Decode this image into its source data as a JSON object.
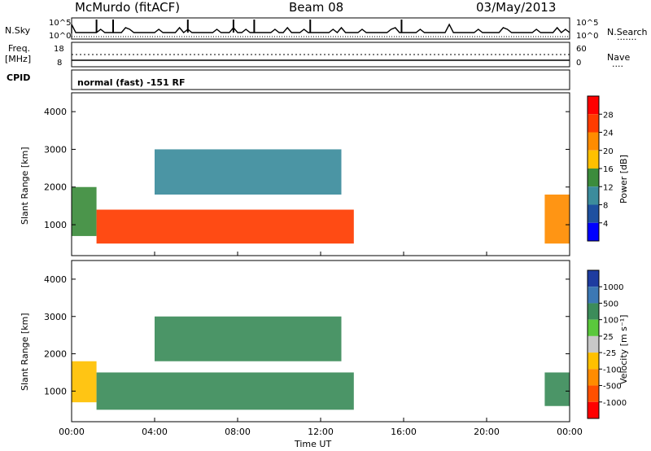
{
  "header": {
    "station": "McMurdo (fitACF)",
    "beam": "Beam 08",
    "date": "03/May/2013"
  },
  "noise_panel": {
    "left_label": "N.Sky",
    "left_ticks": [
      "10^5",
      "10^0"
    ],
    "right_ticks": [
      "10^5",
      "10^0"
    ],
    "right_label": "N.Search",
    "right_dots": "......."
  },
  "freq_panel": {
    "left_label_1": "Freq.",
    "left_label_2": "[MHz]",
    "left_ticks": [
      "18",
      "8"
    ],
    "right_ticks": [
      "60",
      "0"
    ],
    "right_label": "Nave",
    "right_dots": "....",
    "cpid_label": "CPID"
  },
  "cpid_panel": {
    "text": "normal (fast) -151 RF"
  },
  "chart_data": [
    {
      "type": "heatmap",
      "parameter": "Power",
      "ylabel": "Slant Range [km]",
      "xlabel": "Time UT",
      "ylim": [
        180,
        4500
      ],
      "yticks": [
        "4000",
        "3000",
        "2000",
        "1000"
      ],
      "xticks": [
        "00:00",
        "04:00",
        "08:00",
        "12:00",
        "16:00",
        "20:00",
        "00:00"
      ],
      "colorbar_label": "Power [dB]",
      "colorbar_ticks": [
        "28",
        "24",
        "20",
        "16",
        "12",
        "8",
        "4"
      ],
      "colorbar_colors": [
        "#ff0000",
        "#ff3c00",
        "#ff8c00",
        "#ffc000",
        "#3c8c3c",
        "#3c8c9c",
        "#1e50a0",
        "#0000ff"
      ],
      "regions": [
        {
          "t_start": 0.0,
          "t_end": 1.2,
          "range_low": 700,
          "range_high": 2000,
          "value": 14
        },
        {
          "t_start": 1.2,
          "t_end": 13.6,
          "range_low": 500,
          "range_high": 1400,
          "value": 26
        },
        {
          "t_start": 4.0,
          "t_end": 13.0,
          "range_low": 1800,
          "range_high": 3000,
          "value": 10
        },
        {
          "t_start": 22.8,
          "t_end": 24.0,
          "range_low": 500,
          "range_high": 1800,
          "value": 24
        }
      ]
    },
    {
      "type": "heatmap",
      "parameter": "Velocity",
      "ylabel": "Slant Range [km]",
      "xlabel": "Time UT",
      "ylim": [
        180,
        4500
      ],
      "yticks": [
        "4000",
        "3000",
        "2000",
        "1000"
      ],
      "xticks": [
        "00:00",
        "04:00",
        "08:00",
        "12:00",
        "16:00",
        "20:00",
        "00:00"
      ],
      "colorbar_label": "Velocity [m s⁻¹]",
      "colorbar_ticks": [
        "1000",
        "500",
        "100",
        "25",
        "-25",
        "-100",
        "-500",
        "-1000"
      ],
      "colorbar_colors": [
        "#1e3ca0",
        "#3c78b4",
        "#3c8c5a",
        "#5ac83c",
        "#c8c8c8",
        "#ffc000",
        "#ff8c00",
        "#ff5000",
        "#ff0000"
      ],
      "regions": [
        {
          "t_start": 0.0,
          "t_end": 1.2,
          "range_low": 700,
          "range_high": 1800,
          "value": -100
        },
        {
          "t_start": 1.2,
          "t_end": 13.6,
          "range_low": 500,
          "range_high": 1500,
          "value": 100
        },
        {
          "t_start": 4.0,
          "t_end": 13.0,
          "range_low": 1800,
          "range_high": 3000,
          "value": 100
        },
        {
          "t_start": 22.8,
          "t_end": 24.0,
          "range_low": 600,
          "range_high": 1500,
          "value": 100
        }
      ]
    }
  ],
  "xaxis_label": "Time UT"
}
